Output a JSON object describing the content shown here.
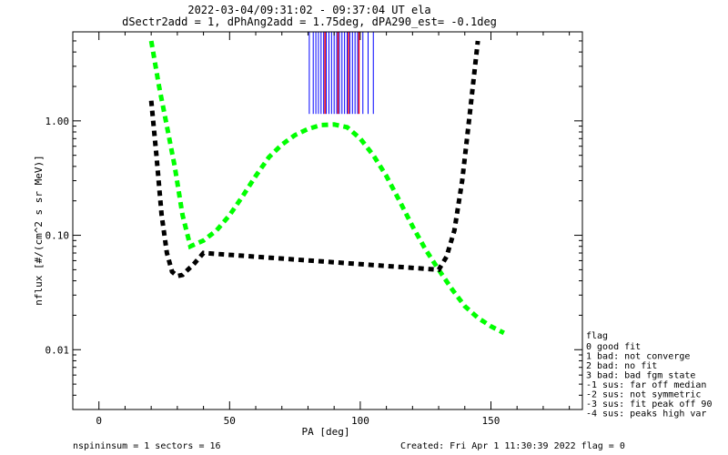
{
  "chart_data": {
    "type": "line",
    "title_line1": "2022-03-04/09:31:02 - 09:37:04 UT ela",
    "title_line2": "dSectr2add = 1, dPhAng2add = 1.75deg, dPA290_est=  -0.1deg",
    "xlabel": "PA [deg]",
    "ylabel": "nflux [#/(cm^2 s sr MeV)]",
    "xlim": [
      -10,
      185
    ],
    "ylim": [
      0.003,
      6
    ],
    "yscale": "log",
    "x_ticks": [
      0,
      50,
      100,
      150
    ],
    "x_tick_labels": [
      "0",
      "50",
      "100",
      "150"
    ],
    "y_ticks": [
      0.01,
      0.1,
      1.0
    ],
    "y_tick_labels": [
      "0.01",
      "0.10",
      "1.00"
    ],
    "grid": false,
    "colors": {
      "blue": "#0000ff",
      "red": "#ff0000",
      "green": "#00ff00",
      "black": "#000000"
    },
    "blue_vlines_x": [
      80.5,
      82,
      83,
      84,
      85,
      86,
      87,
      88,
      89,
      90,
      91,
      92,
      93,
      94,
      95,
      96,
      97,
      98,
      99,
      101,
      103,
      105
    ],
    "red_vlines_x": [
      86.5,
      91.5,
      95.5,
      99.5
    ],
    "series": [
      {
        "color": "green",
        "style": "dashed-thick",
        "x": [
          20,
          23,
          26,
          29,
          32,
          35,
          40,
          45,
          50,
          55,
          60,
          65,
          70,
          75,
          80,
          85,
          90,
          95,
          100,
          105,
          110,
          115,
          120,
          125,
          130,
          135,
          140,
          145,
          150,
          155
        ],
        "y": [
          5.0,
          2.0,
          0.9,
          0.4,
          0.15,
          0.08,
          0.09,
          0.11,
          0.15,
          0.22,
          0.33,
          0.48,
          0.62,
          0.75,
          0.85,
          0.92,
          0.93,
          0.88,
          0.7,
          0.5,
          0.33,
          0.2,
          0.12,
          0.075,
          0.05,
          0.034,
          0.024,
          0.019,
          0.016,
          0.014
        ]
      },
      {
        "color": "black",
        "style": "dashed-thick",
        "x": [
          20,
          22,
          24,
          26,
          28,
          30,
          32,
          34,
          36,
          40,
          130,
          133,
          136,
          139,
          142,
          145
        ],
        "y": [
          1.5,
          0.5,
          0.15,
          0.07,
          0.048,
          0.044,
          0.045,
          0.05,
          0.055,
          0.07,
          0.05,
          0.065,
          0.11,
          0.3,
          1.2,
          5.0
        ]
      }
    ],
    "legend_title": "flag",
    "legend": [
      " 0 good fit",
      " 1 bad: not converge",
      " 2 bad: no fit",
      " 3 bad: bad fgm state",
      "-1 sus: far off median",
      "-2 sus: not symmetric",
      "-3 sus: fit peak off 90",
      "-4 sus: peaks high var"
    ],
    "footer_left": "nspininsum =  1  sectors = 16",
    "footer_right": "Created: Fri Apr  1 11:30:39 2022   flag = 0"
  }
}
